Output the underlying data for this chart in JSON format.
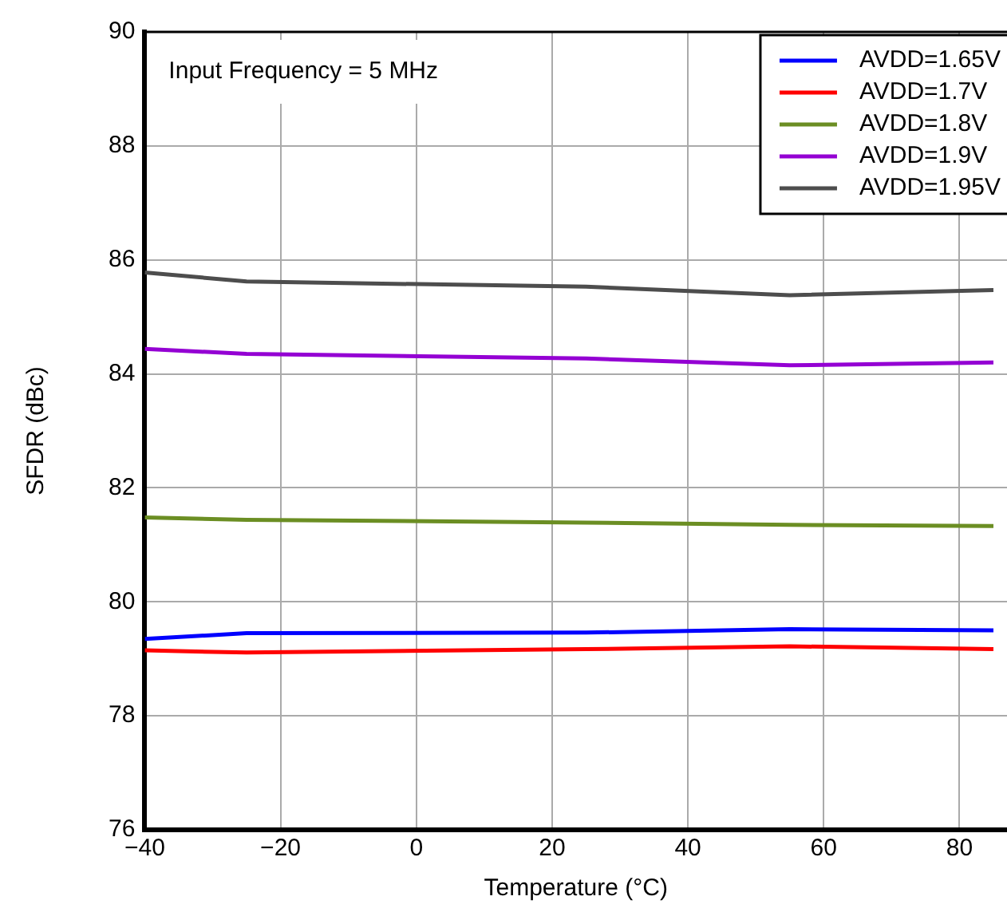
{
  "chart_data": {
    "type": "line",
    "xlabel": "Temperature (°C)",
    "ylabel": "SFDR (dBc)",
    "annotations": [
      "Input Frequency = 5 MHz"
    ],
    "x": [
      -40,
      -25,
      25,
      55,
      85
    ],
    "series": [
      {
        "name": "AVDD=1.65V",
        "color": "#0000ff",
        "values": [
          79.35,
          79.45,
          79.46,
          79.52,
          79.5
        ]
      },
      {
        "name": "AVDD=1.7V",
        "color": "#ff0000",
        "values": [
          79.15,
          79.11,
          79.17,
          79.22,
          79.17
        ]
      },
      {
        "name": "AVDD=1.8V",
        "color": "#6b8e23",
        "values": [
          81.48,
          81.44,
          81.39,
          81.35,
          81.33
        ]
      },
      {
        "name": "AVDD=1.9V",
        "color": "#9400d3",
        "values": [
          84.44,
          84.35,
          84.27,
          84.15,
          84.2
        ]
      },
      {
        "name": "AVDD=1.95V",
        "color": "#4d4d4d",
        "values": [
          85.78,
          85.62,
          85.53,
          85.38,
          85.47
        ]
      }
    ],
    "xlim": [
      -40,
      87
    ],
    "xticks": [
      {
        "value": -40,
        "label": "−40"
      },
      {
        "value": -20,
        "label": "−20"
      },
      0,
      20,
      40,
      60,
      80
    ],
    "ylim": [
      76,
      90
    ],
    "yticks": [
      76,
      78,
      80,
      82,
      84,
      86,
      88,
      90
    ],
    "grid": true,
    "legend": "top right",
    "marker": "none",
    "line_style": "solid"
  }
}
